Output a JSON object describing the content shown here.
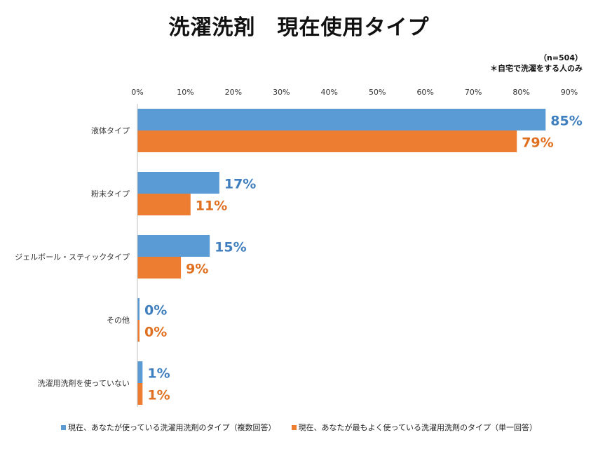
{
  "chart_data": {
    "type": "bar",
    "orientation": "horizontal",
    "title": "洗濯洗剤　現在使用タイプ",
    "notes": [
      "（n=504）",
      "＊自宅で洗濯をする人のみ"
    ],
    "categories": [
      "液体タイプ",
      "粉末タイプ",
      "ジェルボール・スティックタイプ",
      "その他",
      "洗濯用洗剤を使っていない"
    ],
    "series": [
      {
        "name": "現在、あなたが使っている洗濯用洗剤のタイプ（複数回答）",
        "values": [
          85,
          17,
          15,
          0,
          1
        ],
        "labels": [
          "85%",
          "17%",
          "15%",
          "0%",
          "1%"
        ],
        "color": "#5B9BD5",
        "label_color": "#3F7FBF"
      },
      {
        "name": "現在、あなたが最もよく使っている洗濯用洗剤のタイプ（単一回答）",
        "values": [
          79,
          11,
          9,
          0,
          1
        ],
        "labels": [
          "79%",
          "11%",
          "9%",
          "0%",
          "1%"
        ],
        "color": "#ED7D31",
        "label_color": "#E07020"
      }
    ],
    "xlim": [
      0,
      90
    ],
    "xticks": [
      0,
      10,
      20,
      30,
      40,
      50,
      60,
      70,
      80,
      90
    ],
    "xtick_labels": [
      "0%",
      "10%",
      "20%",
      "30%",
      "40%",
      "50%",
      "60%",
      "70%",
      "80%",
      "90%"
    ],
    "axis_position": "top",
    "grid": false,
    "legend_position": "bottom"
  }
}
